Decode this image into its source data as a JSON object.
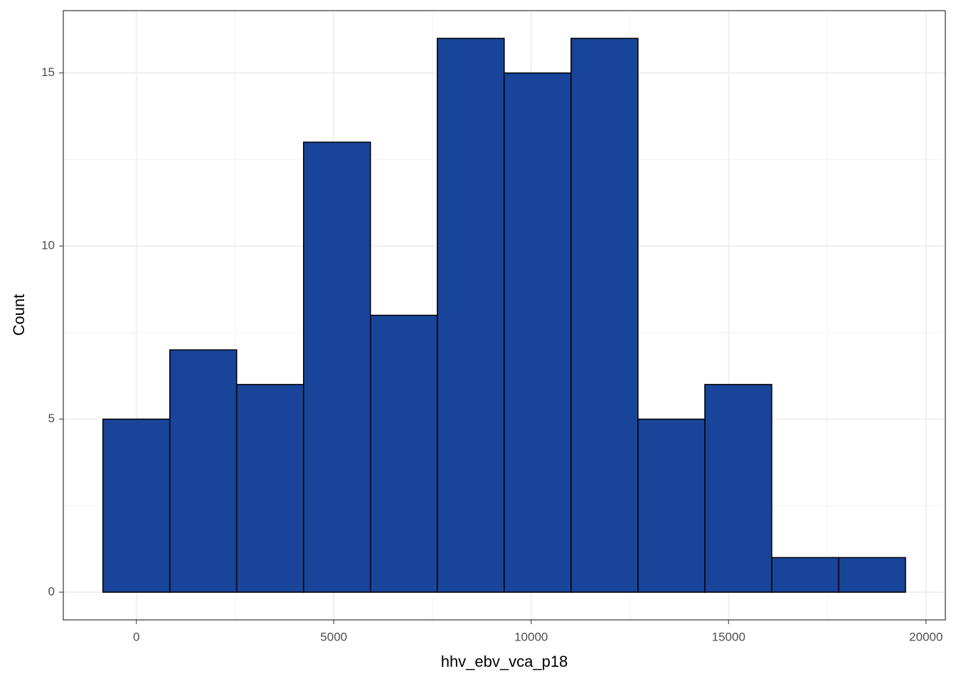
{
  "chart_data": {
    "type": "histogram",
    "x_label": "hhv_ebv_vca_p18",
    "y_label": "Count",
    "bins": [
      -847,
      847,
      2541,
      4235,
      5929,
      7623,
      9317,
      11011,
      12705,
      14399,
      16093,
      17787,
      19481
    ],
    "values": [
      5,
      7,
      6,
      13,
      8,
      16,
      15,
      16,
      5,
      6,
      1,
      1
    ],
    "color": "#18449a",
    "edge_color": "#000000",
    "xlim": [
      -1850,
      20490
    ],
    "xticks": [
      0,
      5000,
      10000,
      15000,
      20000
    ],
    "ylim": [
      -0.8,
      16.8
    ],
    "yticks": [
      0,
      5,
      10,
      15
    ],
    "grid": true
  }
}
